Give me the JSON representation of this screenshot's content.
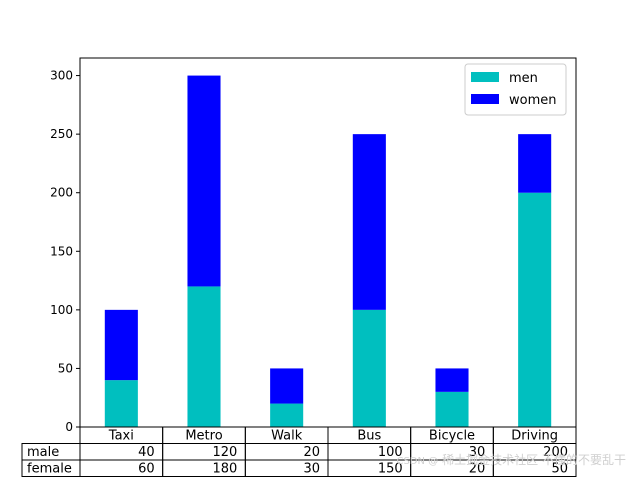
{
  "chart_data": {
    "type": "bar",
    "stacked": true,
    "categories": [
      "Taxi",
      "Metro",
      "Walk",
      "Bus",
      "Bicycle",
      "Driving"
    ],
    "series": [
      {
        "name": "men",
        "values": [
          40,
          120,
          20,
          100,
          30,
          200
        ],
        "color": "#00BFBF"
      },
      {
        "name": "women",
        "values": [
          60,
          180,
          30,
          150,
          20,
          50
        ],
        "color": "#0000FF"
      }
    ],
    "ylim": [
      0,
      315
    ],
    "yticks": [
      0,
      50,
      100,
      150,
      200,
      250,
      300
    ],
    "legend": {
      "position": "top-right"
    },
    "grid": false,
    "table": {
      "columns": [
        "Taxi",
        "Metro",
        "Walk",
        "Bus",
        "Bicycle",
        "Driving"
      ],
      "rows": [
        {
          "label": "male",
          "values": [
            40,
            120,
            20,
            100,
            30,
            200
          ]
        },
        {
          "label": "female",
          "values": [
            60,
            180,
            30,
            150,
            20,
            50
          ]
        }
      ]
    }
  },
  "watermark": {
    "small": "CSDN @",
    "text": "稀土掘金技术社区 不懂的不要乱干"
  }
}
